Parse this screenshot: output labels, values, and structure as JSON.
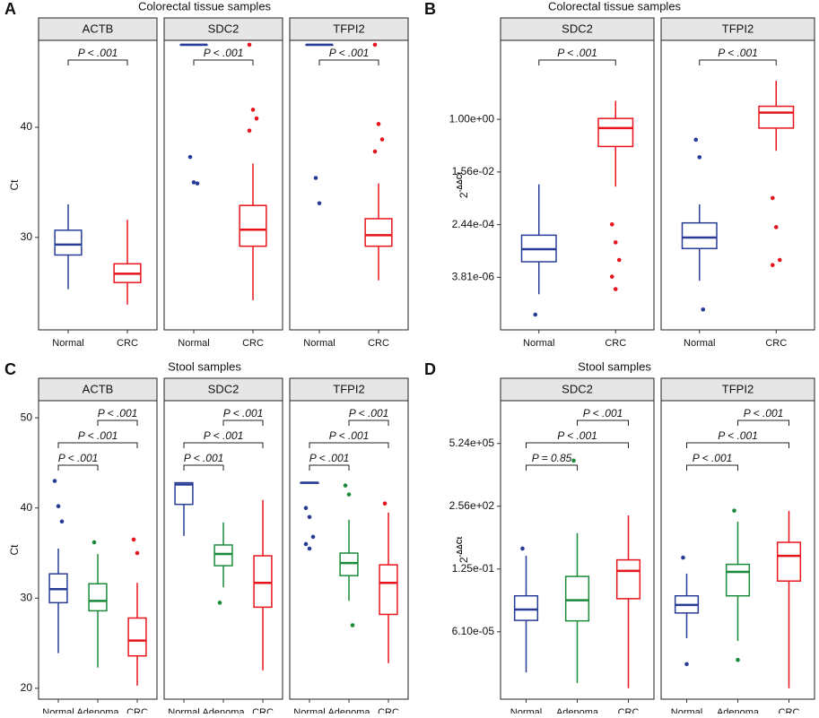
{
  "chart_data": [
    {
      "type": "box",
      "panel_label": "A",
      "title": "Colorectal tissue samples",
      "ylabel": "Ct",
      "ylim": [
        21.6,
        47.9
      ],
      "yticks": [
        30,
        40
      ],
      "log_scale": false,
      "facets": [
        {
          "name": "ACTB",
          "groups": [
            {
              "name": "Normal",
              "color": "#283c96",
              "low": 25.3,
              "q1": 28.4,
              "median": 29.35,
              "q3": 30.65,
              "high": 33.0
            },
            {
              "name": "CRC",
              "color": "#e8141b",
              "low": 23.9,
              "q1": 25.9,
              "median": 26.7,
              "q3": 27.6,
              "high": 31.6
            }
          ],
          "comparisons": [
            {
              "groups": [
                0,
                1
              ],
              "label": "P < .001"
            }
          ]
        },
        {
          "name": "SDC2",
          "groups": [
            {
              "name": "Normal",
              "color": "#283c96",
              "low": 47.5,
              "q1": 47.5,
              "median": 47.5,
              "q3": 47.5,
              "high": 47.5,
              "outliers": [
                37.3,
                35.0,
                34.9
              ]
            },
            {
              "name": "CRC",
              "color": "#e8141b",
              "low": 24.3,
              "q1": 29.2,
              "median": 30.7,
              "q3": 32.9,
              "high": 36.7,
              "outliers": [
                47.5,
                41.6,
                40.8,
                39.7
              ]
            }
          ],
          "comparisons": [
            {
              "groups": [
                0,
                1
              ],
              "label": "P < .001"
            }
          ]
        },
        {
          "name": "TFPI2",
          "groups": [
            {
              "name": "Normal",
              "color": "#283c96",
              "low": 47.5,
              "q1": 47.5,
              "median": 47.5,
              "q3": 47.5,
              "high": 47.5,
              "outliers": [
                35.4,
                33.1
              ]
            },
            {
              "name": "CRC",
              "color": "#e8141b",
              "low": 26.1,
              "q1": 29.2,
              "median": 30.2,
              "q3": 31.7,
              "high": 34.9,
              "outliers": [
                47.5,
                40.3,
                38.9,
                37.8
              ]
            }
          ],
          "comparisons": [
            {
              "groups": [
                0,
                1
              ],
              "label": "P < .001"
            }
          ]
        }
      ]
    },
    {
      "type": "box",
      "panel_label": "B",
      "title": "Colorectal tissue samples",
      "ylabel": "2",
      "ylabel_sup": "-ΔΔCt",
      "ylim": [
        6e-08,
        512
      ],
      "log_scale": true,
      "log_base": 2,
      "yticks": [
        {
          "value": 3.81e-06,
          "label": "3.81e-06"
        },
        {
          "value": 0.000244,
          "label": "2.44e-04"
        },
        {
          "value": 0.0156,
          "label": "1.56e-02"
        },
        {
          "value": 1,
          "label": "1.00e+00"
        }
      ],
      "facets": [
        {
          "name": "SDC2",
          "groups": [
            {
              "name": "Normal",
              "color": "#283c96",
              "low": 1e-06,
              "q1": 1.3e-05,
              "median": 3.5e-05,
              "q3": 0.000106,
              "high": 0.0059,
              "outliers": [
                2e-07
              ]
            },
            {
              "name": "CRC",
              "color": "#e8141b",
              "low": 0.0049,
              "q1": 0.117,
              "median": 0.5,
              "q3": 1.07,
              "high": 4.3,
              "outliers": [
                0.00025,
                6e-05,
                1.5e-05,
                4e-06,
                1.5e-06
              ]
            }
          ],
          "comparisons": [
            {
              "groups": [
                0,
                1
              ],
              "label": "P < .001"
            }
          ]
        },
        {
          "name": "TFPI2",
          "groups": [
            {
              "name": "Normal",
              "color": "#283c96",
              "low": 2.9e-06,
              "q1": 3.7e-05,
              "median": 8.8e-05,
              "q3": 0.00028,
              "high": 0.0012,
              "outliers": [
                0.2,
                0.05,
                3e-07
              ]
            },
            {
              "name": "CRC",
              "color": "#e8141b",
              "low": 0.083,
              "q1": 0.5,
              "median": 1.7,
              "q3": 2.8,
              "high": 21,
              "outliers": [
                0.002,
                0.0002,
                1.5e-05,
                1e-05
              ]
            }
          ],
          "comparisons": [
            {
              "groups": [
                0,
                1
              ],
              "label": "P < .001"
            }
          ]
        }
      ]
    },
    {
      "type": "box",
      "panel_label": "C",
      "title": "Stool samples",
      "ylabel": "Ct",
      "ylim": [
        18.8,
        51.9
      ],
      "yticks": [
        20,
        30,
        40,
        50
      ],
      "log_scale": false,
      "facets": [
        {
          "name": "ACTB",
          "groups": [
            {
              "name": "Normal",
              "color": "#283c96",
              "low": 23.9,
              "q1": 29.5,
              "median": 31.0,
              "q3": 32.7,
              "high": 35.5,
              "outliers": [
                43.0,
                40.2,
                38.5
              ]
            },
            {
              "name": "Adenoma",
              "color": "#1a8a3a",
              "low": 22.3,
              "q1": 28.6,
              "median": 29.7,
              "q3": 31.6,
              "high": 34.9,
              "outliers": [
                36.2
              ]
            },
            {
              "name": "CRC",
              "color": "#e8141b",
              "low": 20.3,
              "q1": 23.6,
              "median": 25.3,
              "q3": 27.8,
              "high": 31.7,
              "outliers": [
                36.5,
                35.0
              ]
            }
          ],
          "comparisons": [
            {
              "groups": [
                1,
                2
              ],
              "label": "P < .001"
            },
            {
              "groups": [
                0,
                2
              ],
              "label": "P < .001"
            },
            {
              "groups": [
                0,
                1
              ],
              "label": "P < .001"
            }
          ]
        },
        {
          "name": "SDC2",
          "groups": [
            {
              "name": "Normal",
              "color": "#283c96",
              "low": 36.9,
              "q1": 40.4,
              "median": 42.6,
              "q3": 42.8,
              "high": 42.8
            },
            {
              "name": "Adenoma",
              "color": "#1a8a3a",
              "low": 31.2,
              "q1": 33.6,
              "median": 34.9,
              "q3": 35.9,
              "high": 38.4,
              "outliers": [
                29.5
              ]
            },
            {
              "name": "CRC",
              "color": "#e8141b",
              "low": 22.0,
              "q1": 29.0,
              "median": 31.7,
              "q3": 34.7,
              "high": 40.9
            }
          ],
          "comparisons": [
            {
              "groups": [
                1,
                2
              ],
              "label": "P < .001"
            },
            {
              "groups": [
                0,
                2
              ],
              "label": "P < .001"
            },
            {
              "groups": [
                0,
                1
              ],
              "label": "P < .001"
            }
          ]
        },
        {
          "name": "TFPI2",
          "groups": [
            {
              "name": "Normal",
              "color": "#283c96",
              "low": 42.8,
              "q1": 42.8,
              "median": 42.8,
              "q3": 42.8,
              "high": 42.8,
              "outliers": [
                40.0,
                39.0,
                36.8,
                36.0,
                35.5
              ]
            },
            {
              "name": "Adenoma",
              "color": "#1a8a3a",
              "low": 29.7,
              "q1": 32.5,
              "median": 33.9,
              "q3": 35.0,
              "high": 38.7,
              "outliers": [
                42.5,
                41.5,
                27.0
              ]
            },
            {
              "name": "CRC",
              "color": "#e8141b",
              "low": 22.8,
              "q1": 28.2,
              "median": 31.7,
              "q3": 33.7,
              "high": 39.5,
              "outliers": [
                40.5
              ]
            }
          ],
          "comparisons": [
            {
              "groups": [
                1,
                2
              ],
              "label": "P < .001"
            },
            {
              "groups": [
                0,
                2
              ],
              "label": "P < .001"
            },
            {
              "groups": [
                0,
                1
              ],
              "label": "P < .001"
            }
          ]
        }
      ]
    },
    {
      "type": "box",
      "panel_label": "D",
      "title": "Stool samples",
      "ylabel": "2",
      "ylabel_sup": "-ΔΔCt",
      "ylim": [
        1.7e-08,
        95000000.0
      ],
      "log_scale": true,
      "log_base": 2,
      "yticks": [
        {
          "value": 6.1e-05,
          "label": "6.10e-05"
        },
        {
          "value": 0.125,
          "label": "1.25e-01"
        },
        {
          "value": 256,
          "label": "2.56e+02"
        },
        {
          "value": 524288,
          "label": "5.24e+05"
        }
      ],
      "facets": [
        {
          "name": "SDC2",
          "groups": [
            {
              "name": "Normal",
              "color": "#283c96",
              "low": 4.4e-07,
              "q1": 0.000244,
              "median": 0.00091,
              "q3": 0.0048,
              "high": 0.62,
              "outliers": [
                1.5
              ]
            },
            {
              "name": "Adenoma",
              "color": "#1a8a3a",
              "low": 1.2e-07,
              "q1": 0.00023,
              "median": 0.0028,
              "q3": 0.051,
              "high": 9.8,
              "outliers": [
                65536
              ]
            },
            {
              "name": "CRC",
              "color": "#e8141b",
              "low": 6.4e-08,
              "q1": 0.0034,
              "median": 0.1,
              "q3": 0.38,
              "high": 84
            }
          ],
          "comparisons": [
            {
              "groups": [
                1,
                2
              ],
              "label": "P < .001"
            },
            {
              "groups": [
                0,
                2
              ],
              "label": "P < .001"
            },
            {
              "groups": [
                0,
                1
              ],
              "label": "P = 0.85"
            }
          ]
        },
        {
          "name": "TFPI2",
          "groups": [
            {
              "name": "Normal",
              "color": "#283c96",
              "low": 2.8e-05,
              "q1": 0.0006,
              "median": 0.0016,
              "q3": 0.0048,
              "high": 0.072,
              "outliers": [
                0.5,
                1.2e-06
              ]
            },
            {
              "name": "Adenoma",
              "color": "#1a8a3a",
              "low": 2e-05,
              "q1": 0.0048,
              "median": 0.088,
              "q3": 0.22,
              "high": 39,
              "outliers": [
                150,
                2e-06
              ]
            },
            {
              "name": "CRC",
              "color": "#e8141b",
              "low": 6.4e-08,
              "q1": 0.029,
              "median": 0.62,
              "q3": 3.2,
              "high": 147
            }
          ],
          "comparisons": [
            {
              "groups": [
                1,
                2
              ],
              "label": "P < .001"
            },
            {
              "groups": [
                0,
                2
              ],
              "label": "P < .001"
            },
            {
              "groups": [
                0,
                1
              ],
              "label": "P < .001"
            }
          ]
        }
      ]
    }
  ]
}
